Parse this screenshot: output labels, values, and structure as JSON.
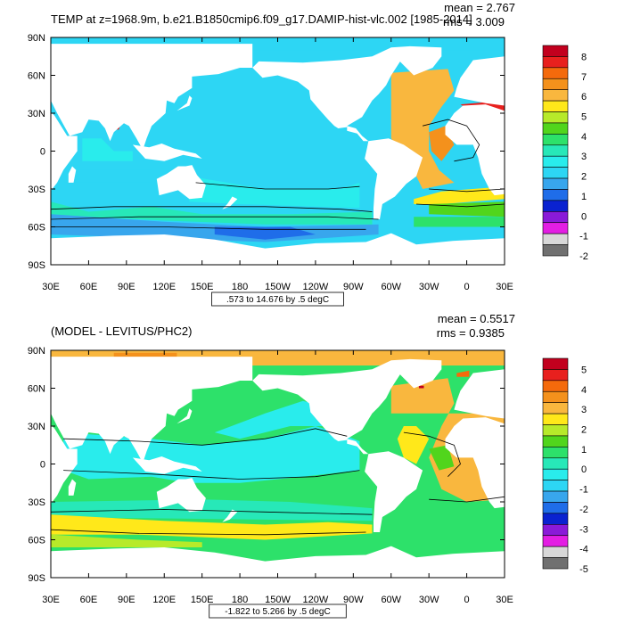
{
  "chart_data": [
    {
      "type": "heatmap",
      "title": "TEMP at z=1968.9m, b.e21.B1850cmip6.f09_g17.DAMIP-hist-vlc.002 [1985-2014]",
      "stats": {
        "mean_label": "mean = 2.767",
        "rms_label": "rms = 3.009",
        "mean": 2.767,
        "rms": 3.009
      },
      "contour_info": ".573 to 14.676 by .5 degC",
      "x_tick_labels": [
        "30E",
        "60E",
        "90E",
        "120E",
        "150E",
        "180",
        "150W",
        "120W",
        "90W",
        "60W",
        "30W",
        "0",
        "30E"
      ],
      "y_tick_labels": [
        "90N",
        "60N",
        "30N",
        "0",
        "30S",
        "60S",
        "90S"
      ],
      "xlim": [
        30,
        390
      ],
      "ylim": [
        -90,
        90
      ],
      "colorbar": {
        "labels": [
          "8",
          "7",
          "6",
          "5",
          "4",
          "3",
          "2",
          "1",
          "0",
          "-1",
          "-2"
        ],
        "colors": [
          "#c2001e",
          "#e8201e",
          "#f46a0c",
          "#f4911c",
          "#f9b73e",
          "#ffe81a",
          "#b7ea2a",
          "#51d51c",
          "#2de16a",
          "#27e8b8",
          "#29ecec",
          "#2dd6f4",
          "#38a6ed",
          "#1f6de9",
          "#0a22d0",
          "#8a1ad8",
          "#e31ee3",
          "#d8d8d8",
          "#707070"
        ]
      }
    },
    {
      "type": "heatmap",
      "title": "(MODEL - LEVITUS/PHC2)",
      "stats": {
        "mean_label": "mean = 0.5517",
        "rms_label": "rms = 0.9385",
        "mean": 0.5517,
        "rms": 0.9385
      },
      "contour_info": "-1.822 to 5.266 by .5 degC",
      "x_tick_labels": [
        "30E",
        "60E",
        "90E",
        "120E",
        "150E",
        "180",
        "150W",
        "120W",
        "90W",
        "60W",
        "30W",
        "0",
        "30E"
      ],
      "y_tick_labels": [
        "90N",
        "60N",
        "30N",
        "0",
        "30S",
        "60S",
        "90S"
      ],
      "xlim": [
        30,
        390
      ],
      "ylim": [
        -90,
        90
      ],
      "colorbar": {
        "labels": [
          "5",
          "4",
          "3",
          "2",
          "1",
          "0",
          "-1",
          "-2",
          "-3",
          "-4",
          "-5"
        ],
        "colors": [
          "#c2001e",
          "#e8201e",
          "#f46a0c",
          "#f4911c",
          "#f9b73e",
          "#ffe81a",
          "#b7ea2a",
          "#51d51c",
          "#2de16a",
          "#27e8b8",
          "#29ecec",
          "#2dd6f4",
          "#38a6ed",
          "#1f6de9",
          "#0a22d0",
          "#8a1ad8",
          "#e31ee3",
          "#d8d8d8",
          "#707070"
        ]
      }
    }
  ]
}
